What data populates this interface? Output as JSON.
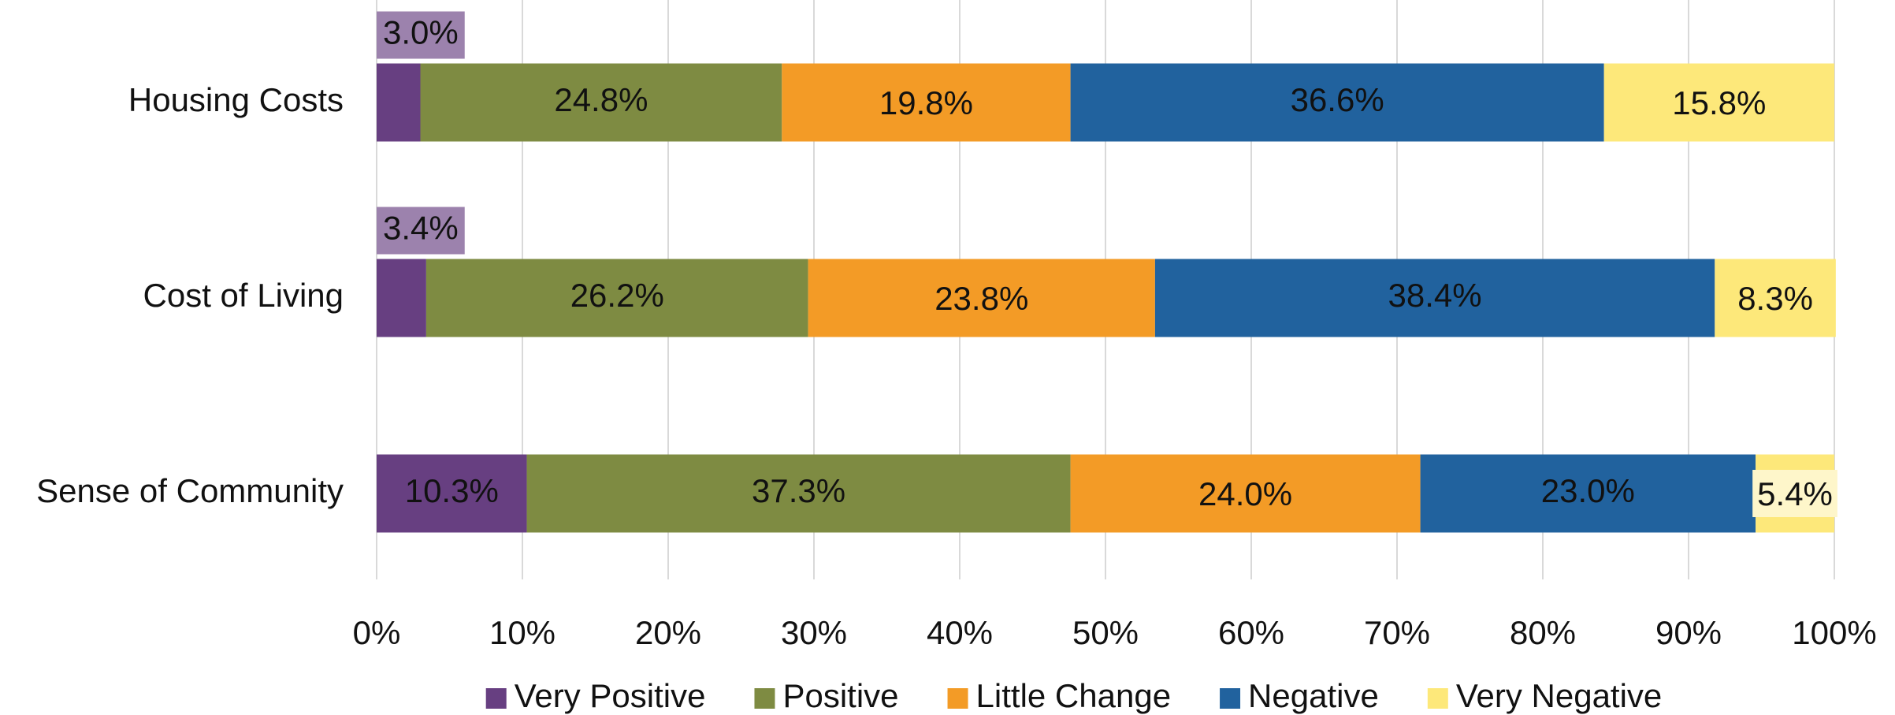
{
  "chart_data": {
    "type": "stacked_barh",
    "categories": [
      "Housing Costs",
      "Cost of Living",
      "Sense of Community"
    ],
    "series": [
      {
        "name": "Very Positive",
        "color": "#673f81",
        "values": [
          3.0,
          3.4,
          10.3
        ],
        "value_labels": [
          "3.0%",
          "3.4%",
          "10.3%"
        ]
      },
      {
        "name": "Positive",
        "color": "#7e8b42",
        "values": [
          24.8,
          26.2,
          37.3
        ],
        "value_labels": [
          "24.8%",
          "26.2%",
          "37.3%"
        ]
      },
      {
        "name": "Little Change",
        "color": "#f39b26",
        "values": [
          19.8,
          23.8,
          24.0
        ],
        "value_labels": [
          "19.8%",
          "23.8%",
          "24.0%"
        ]
      },
      {
        "name": "Negative",
        "color": "#21629e",
        "values": [
          36.6,
          38.4,
          23.0
        ],
        "value_labels": [
          "36.6%",
          "38.4%",
          "23.0%"
        ]
      },
      {
        "name": "Very Negative",
        "color": "#fde87a",
        "values": [
          15.8,
          8.3,
          5.4
        ],
        "value_labels": [
          "15.8%",
          "8.3%",
          "5.4%"
        ]
      }
    ],
    "xlim": [
      0,
      100
    ],
    "xticks": [
      {
        "value": 0,
        "label": "0%"
      },
      {
        "value": 10,
        "label": "10%"
      },
      {
        "value": 20,
        "label": "20%"
      },
      {
        "value": 30,
        "label": "30%"
      },
      {
        "value": 40,
        "label": "40%"
      },
      {
        "value": 50,
        "label": "50%"
      },
      {
        "value": 60,
        "label": "60%"
      },
      {
        "value": 70,
        "label": "70%"
      },
      {
        "value": 80,
        "label": "80%"
      },
      {
        "value": 90,
        "label": "90%"
      },
      {
        "value": 100,
        "label": "100%"
      }
    ],
    "grid": true,
    "legend": "bottom"
  }
}
